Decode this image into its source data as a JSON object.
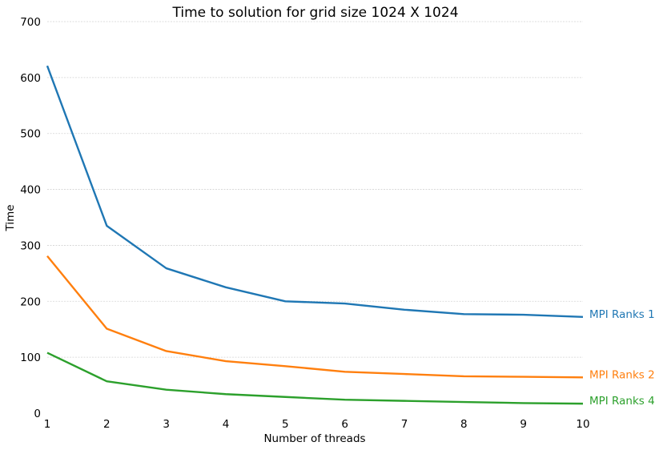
{
  "chart_data": {
    "type": "line",
    "title": "Time to solution for grid size 1024 X 1024",
    "xlabel": "Number of threads",
    "ylabel": "Time",
    "x": [
      1,
      2,
      3,
      4,
      5,
      6,
      7,
      8,
      9,
      10
    ],
    "xlim": [
      1,
      10
    ],
    "ylim": [
      0,
      700
    ],
    "xticks": [
      "1",
      "2",
      "3",
      "4",
      "5",
      "6",
      "7",
      "8",
      "9",
      "10"
    ],
    "yticks": [
      "0",
      "100",
      "200",
      "300",
      "400",
      "500",
      "600",
      "700"
    ],
    "grid": "horizontal dashed",
    "legend": "series labels at right end of lines",
    "series": [
      {
        "name": "MPI Ranks 1",
        "color": "#1f77b4",
        "values": [
          621,
          335,
          259,
          225,
          200,
          196,
          185,
          177,
          176,
          172
        ]
      },
      {
        "name": "MPI Ranks 2",
        "color": "#ff7f0e",
        "values": [
          281,
          151,
          111,
          93,
          84,
          74,
          70,
          66,
          65,
          64
        ]
      },
      {
        "name": "MPI Ranks 4",
        "color": "#2ca02c",
        "values": [
          108,
          57,
          42,
          34,
          29,
          24,
          22,
          20,
          18,
          17
        ]
      }
    ]
  }
}
